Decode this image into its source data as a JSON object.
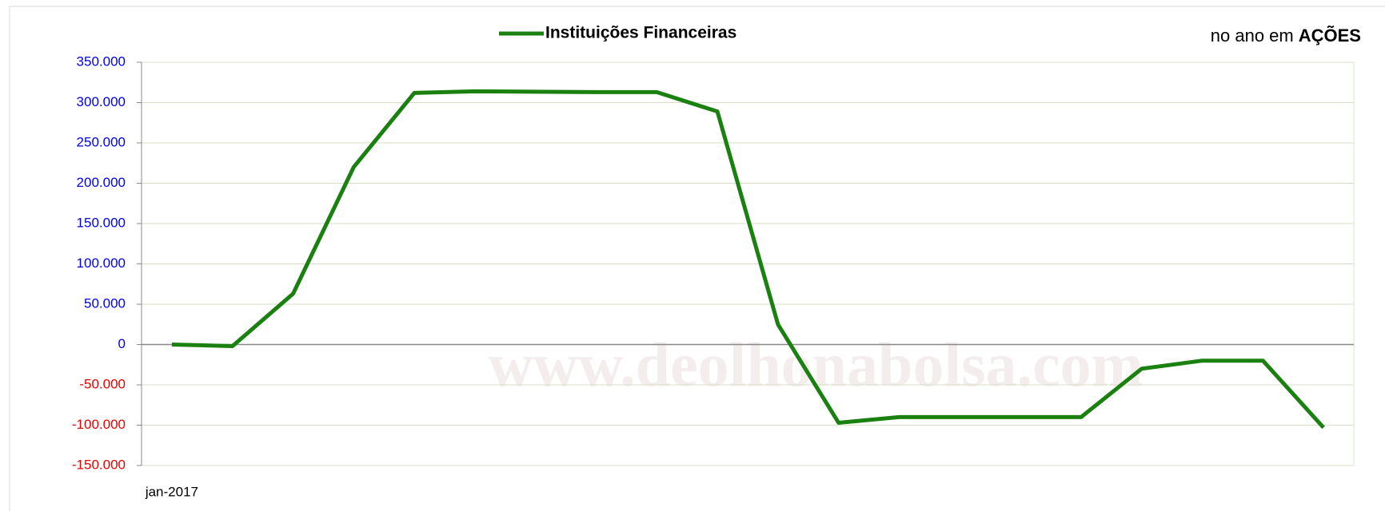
{
  "chart_data": {
    "type": "line",
    "series": [
      {
        "name": "Instituições Financeiras",
        "color": "#1a8010",
        "values": [
          0,
          -2000,
          63000,
          220000,
          312000,
          314000,
          313500,
          313000,
          313000,
          289000,
          25000,
          -97000,
          -90000,
          -90000,
          -90000,
          -90000,
          -30000,
          -20000,
          -20000,
          -103000
        ]
      }
    ],
    "categories": [
      "jan-2017",
      null,
      null,
      null,
      null,
      null,
      null,
      null,
      null,
      null,
      null,
      null,
      null,
      null,
      null,
      null,
      null,
      null,
      null,
      null
    ],
    "ylim": [
      -150000,
      350000
    ],
    "yticks": [
      {
        "value": -150000,
        "label": "-150.000"
      },
      {
        "value": -100000,
        "label": "-100.000"
      },
      {
        "value": -50000,
        "label": "-50.000"
      },
      0,
      {
        "value": 50000,
        "label": "50.000"
      },
      {
        "value": 100000,
        "label": "100.000"
      },
      {
        "value": 150000,
        "label": "150.000"
      },
      {
        "value": 200000,
        "label": "200.000"
      },
      {
        "value": 250000,
        "label": "250.000"
      },
      {
        "value": 300000,
        "label": "300.000"
      },
      {
        "value": 350000,
        "label": "350.000"
      }
    ],
    "ytick_colors": {
      "positive": "#0000ee",
      "negative": "#ee0000"
    },
    "grid": true,
    "legend": "top",
    "annotation": {
      "text": "no ano em",
      "emphasis": "AÇÕES"
    },
    "watermark": "www.deolhonabolsa.com"
  }
}
